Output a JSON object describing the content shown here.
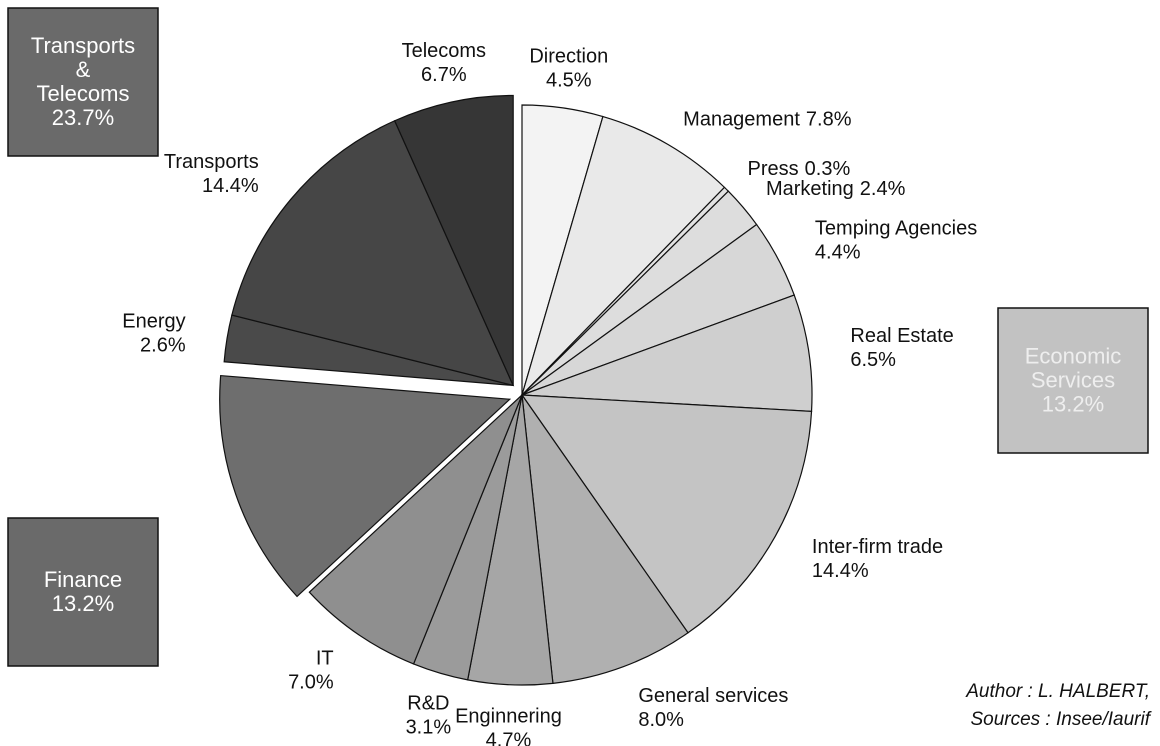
{
  "chart_data": {
    "type": "pie",
    "categories": [
      "Direction",
      "Management",
      "Press",
      "Marketing",
      "Temping Agencies",
      "Real Estate",
      "Inter-firm trade",
      "General services",
      "Enginnering",
      "R&D",
      "IT",
      null,
      "Energy",
      "Transports",
      "Telecoms"
    ],
    "values": [
      4.5,
      7.8,
      0.3,
      2.4,
      4.4,
      6.5,
      14.4,
      8.0,
      4.7,
      3.1,
      7.0,
      13.2,
      2.6,
      14.4,
      6.7
    ],
    "value_labels": [
      "4.5%",
      "7.8%",
      "0.3%",
      "2.4%",
      "4.4%",
      "6.5%",
      "14.4%",
      "8.0%",
      "4.7%",
      "3.1%",
      "7.0%",
      null,
      "2.6%",
      "14.4%",
      "6.7%"
    ],
    "colors": [
      "#f3f3f3",
      "#e9e9e9",
      "#e2e2e2",
      "#dddddd",
      "#d7d7d7",
      "#cfcfcf",
      "#c4c4c4",
      "#b0b0b0",
      "#a6a6a6",
      "#9b9b9b",
      "#8f8f8f",
      "#6e6e6e",
      "#4a4a4a",
      "#464646",
      "#363636"
    ],
    "explode": [
      0,
      0,
      0,
      0,
      0,
      0,
      0,
      0,
      0,
      0,
      0,
      2,
      1,
      1,
      1
    ],
    "groups": [
      {
        "lines": [
          "Transports",
          "&",
          "Telecoms"
        ],
        "label": "23.7%",
        "color": "#6a6a6a",
        "text_color": "#ffffff"
      },
      {
        "lines": [
          "Finance"
        ],
        "label": "13.2%",
        "color": "#6a6a6a",
        "text_color": "#ffffff"
      },
      {
        "lines": [
          "Economic",
          "Services"
        ],
        "label": "13.2%",
        "color": "#c2c2c2",
        "text_color": "#eeeeee"
      }
    ],
    "author": [
      "Author : L. HALBERT,",
      "Sources : Insee/Iaurif"
    ]
  }
}
